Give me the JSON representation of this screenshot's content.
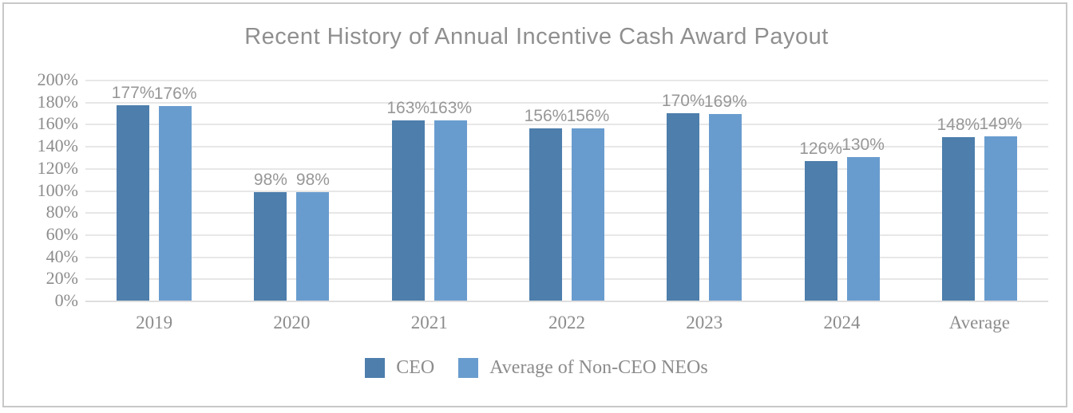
{
  "frame": {
    "border_color": "#c8c8c8"
  },
  "chart_data": {
    "type": "bar",
    "title": "Recent History of Annual Incentive Cash Award Payout",
    "categories": [
      "2019",
      "2020",
      "2021",
      "2022",
      "2023",
      "2024",
      "Average"
    ],
    "series": [
      {
        "name": "CEO",
        "color": "#4d7eac",
        "values": [
          177,
          98,
          163,
          156,
          170,
          126,
          148
        ],
        "labels": [
          "177%",
          "98%",
          "163%",
          "156%",
          "170%",
          "126%",
          "148%"
        ]
      },
      {
        "name": "Average of Non-CEO NEOs",
        "color": "#699cce",
        "values": [
          176,
          98,
          163,
          156,
          169,
          130,
          149
        ],
        "labels": [
          "176%",
          "98%",
          "163%",
          "156%",
          "169%",
          "130%",
          "149%"
        ]
      }
    ],
    "y_axis": {
      "min": 0,
      "max": 200,
      "step": 20,
      "tick_labels": [
        "0%",
        "20%",
        "40%",
        "60%",
        "80%",
        "100%",
        "120%",
        "140%",
        "160%",
        "180%",
        "200%"
      ]
    },
    "xlabel": "",
    "ylabel": "",
    "grid": true,
    "legend_position": "bottom",
    "gridline_color": "#e7e7e7"
  }
}
